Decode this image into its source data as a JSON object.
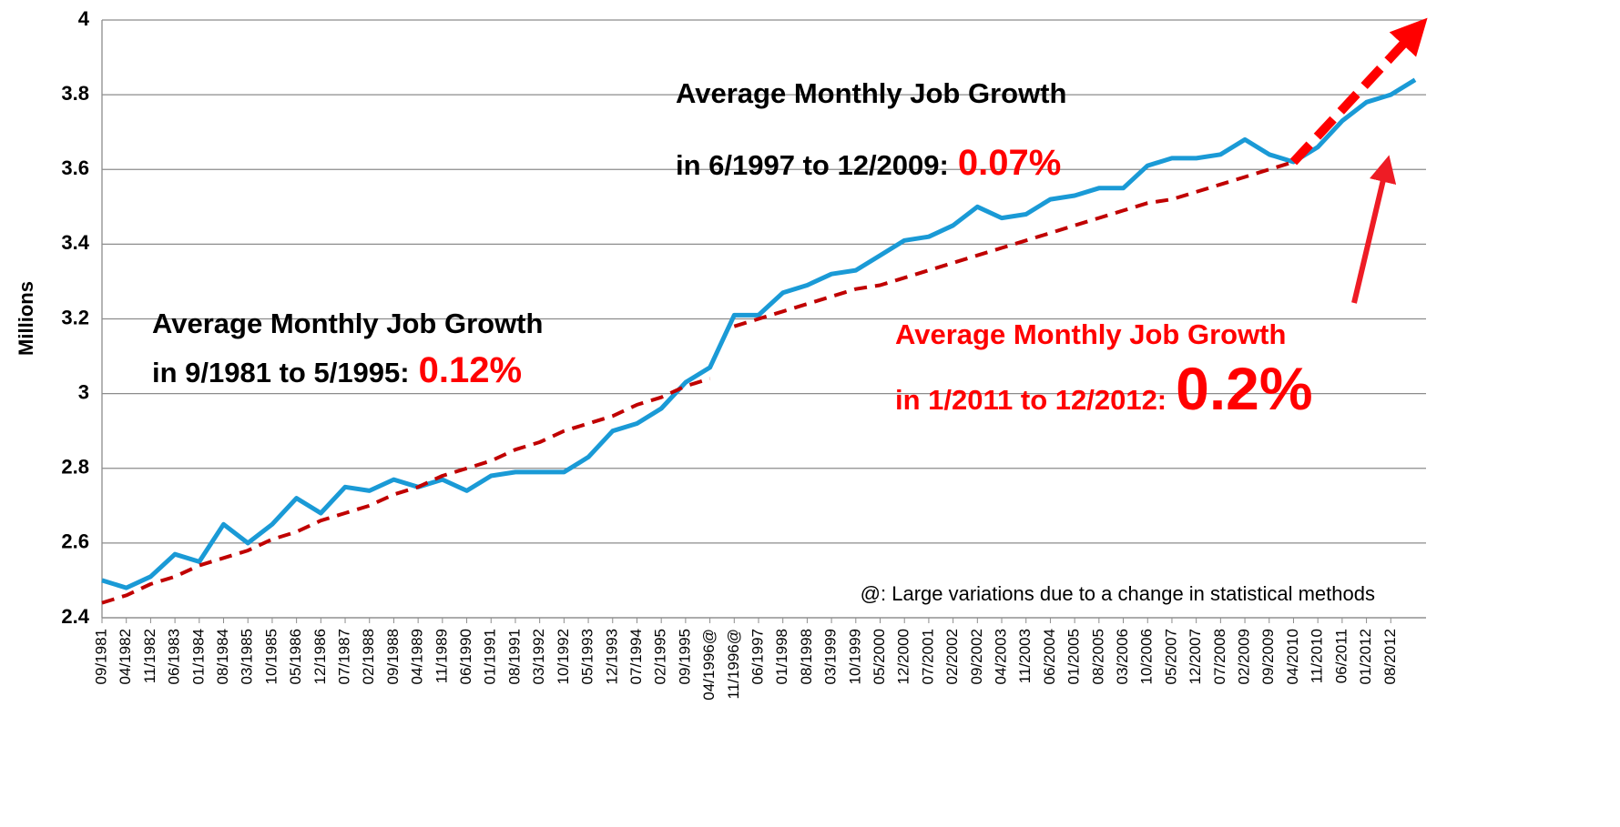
{
  "chart_data": {
    "type": "line",
    "y_axis_label": "Millions",
    "categories": [
      "09/1981",
      "04/1982",
      "11/1982",
      "06/1983",
      "01/1984",
      "08/1984",
      "03/1985",
      "10/1985",
      "05/1986",
      "12/1986",
      "07/1987",
      "02/1988",
      "09/1988",
      "04/1989",
      "11/1989",
      "06/1990",
      "01/1991",
      "08/1991",
      "03/1992",
      "10/1992",
      "05/1993",
      "12/1993",
      "07/1994",
      "02/1995",
      "09/1995",
      "04/1996@",
      "11/1996@",
      "06/1997",
      "01/1998",
      "08/1998",
      "03/1999",
      "10/1999",
      "05/2000",
      "12/2000",
      "07/2001",
      "02/2002",
      "09/2002",
      "04/2003",
      "11/2003",
      "06/2004",
      "01/2005",
      "08/2005",
      "03/2006",
      "10/2006",
      "05/2007",
      "12/2007",
      "07/2008",
      "02/2009",
      "09/2009",
      "04/2010",
      "11/2010",
      "06/2011",
      "01/2012",
      "08/2012",
      null
    ],
    "series": [
      {
        "color": "#1a9ad6",
        "style": "solid",
        "values": [
          2.5,
          2.48,
          2.51,
          2.57,
          2.55,
          2.65,
          2.6,
          2.65,
          2.72,
          2.68,
          2.75,
          2.74,
          2.77,
          2.75,
          2.77,
          2.74,
          2.78,
          2.79,
          2.79,
          2.79,
          2.83,
          2.9,
          2.92,
          2.96,
          3.03,
          3.07,
          3.21,
          3.21,
          3.27,
          3.29,
          3.32,
          3.33,
          3.37,
          3.41,
          3.42,
          3.45,
          3.5,
          3.47,
          3.48,
          3.52,
          3.53,
          3.55,
          3.55,
          3.61,
          3.63,
          3.63,
          3.64,
          3.68,
          3.64,
          3.62,
          3.66,
          3.73,
          3.78,
          3.8,
          3.84
        ]
      },
      {
        "color": "#c00000",
        "style": "dashed",
        "values": [
          2.44,
          2.46,
          2.49,
          2.51,
          2.54,
          2.56,
          2.58,
          2.61,
          2.63,
          2.66,
          2.68,
          2.7,
          2.73,
          2.75,
          2.78,
          2.8,
          2.82,
          2.85,
          2.87,
          2.9,
          2.92,
          2.94,
          2.97,
          2.99,
          3.02,
          3.04,
          null,
          null,
          null,
          null,
          null,
          null,
          null,
          null,
          null,
          null,
          null,
          null,
          null,
          null,
          null,
          null,
          null,
          null,
          null,
          null,
          null,
          null,
          null,
          null,
          null,
          null,
          null,
          null,
          null
        ]
      },
      {
        "color": "#c00000",
        "style": "dashed",
        "values": [
          null,
          null,
          null,
          null,
          null,
          null,
          null,
          null,
          null,
          null,
          null,
          null,
          null,
          null,
          null,
          null,
          null,
          null,
          null,
          null,
          null,
          null,
          null,
          null,
          null,
          null,
          3.18,
          3.2,
          3.22,
          3.24,
          3.26,
          3.28,
          3.29,
          3.31,
          3.33,
          3.35,
          3.37,
          3.39,
          3.41,
          3.43,
          3.45,
          3.47,
          3.49,
          3.51,
          3.52,
          3.54,
          3.56,
          3.58,
          3.6,
          3.62,
          null,
          null,
          null,
          null,
          null
        ]
      },
      {
        "color": "#ff0000",
        "style": "arrow",
        "values": [
          null,
          null,
          null,
          null,
          null,
          null,
          null,
          null,
          null,
          null,
          null,
          null,
          null,
          null,
          null,
          null,
          null,
          null,
          null,
          null,
          null,
          null,
          null,
          null,
          null,
          null,
          null,
          null,
          null,
          null,
          null,
          null,
          null,
          null,
          null,
          null,
          null,
          null,
          null,
          null,
          null,
          null,
          null,
          null,
          null,
          null,
          null,
          null,
          null,
          3.62,
          3.69,
          3.76,
          3.83,
          3.9,
          3.97
        ]
      }
    ],
    "ylim": [
      2.4,
      4
    ],
    "yticks": [
      2.4,
      2.6,
      2.8,
      3,
      3.2,
      3.4,
      3.6,
      3.8,
      4
    ],
    "grid": true,
    "annotations": [
      {
        "line1": "Average Monthly Job Growth",
        "line2": "in 9/1981 to 5/1995:",
        "value": "0.12%"
      },
      {
        "line1": "Average Monthly Job Growth",
        "line2": "in 6/1997 to 12/2009:",
        "value": "0.07%"
      },
      {
        "line1": "Average Monthly Job Growth",
        "line2": "in 1/2011 to 12/2012:",
        "value": "0.2%"
      }
    ],
    "note": "@: Large variations due to a change in statistical methods"
  }
}
